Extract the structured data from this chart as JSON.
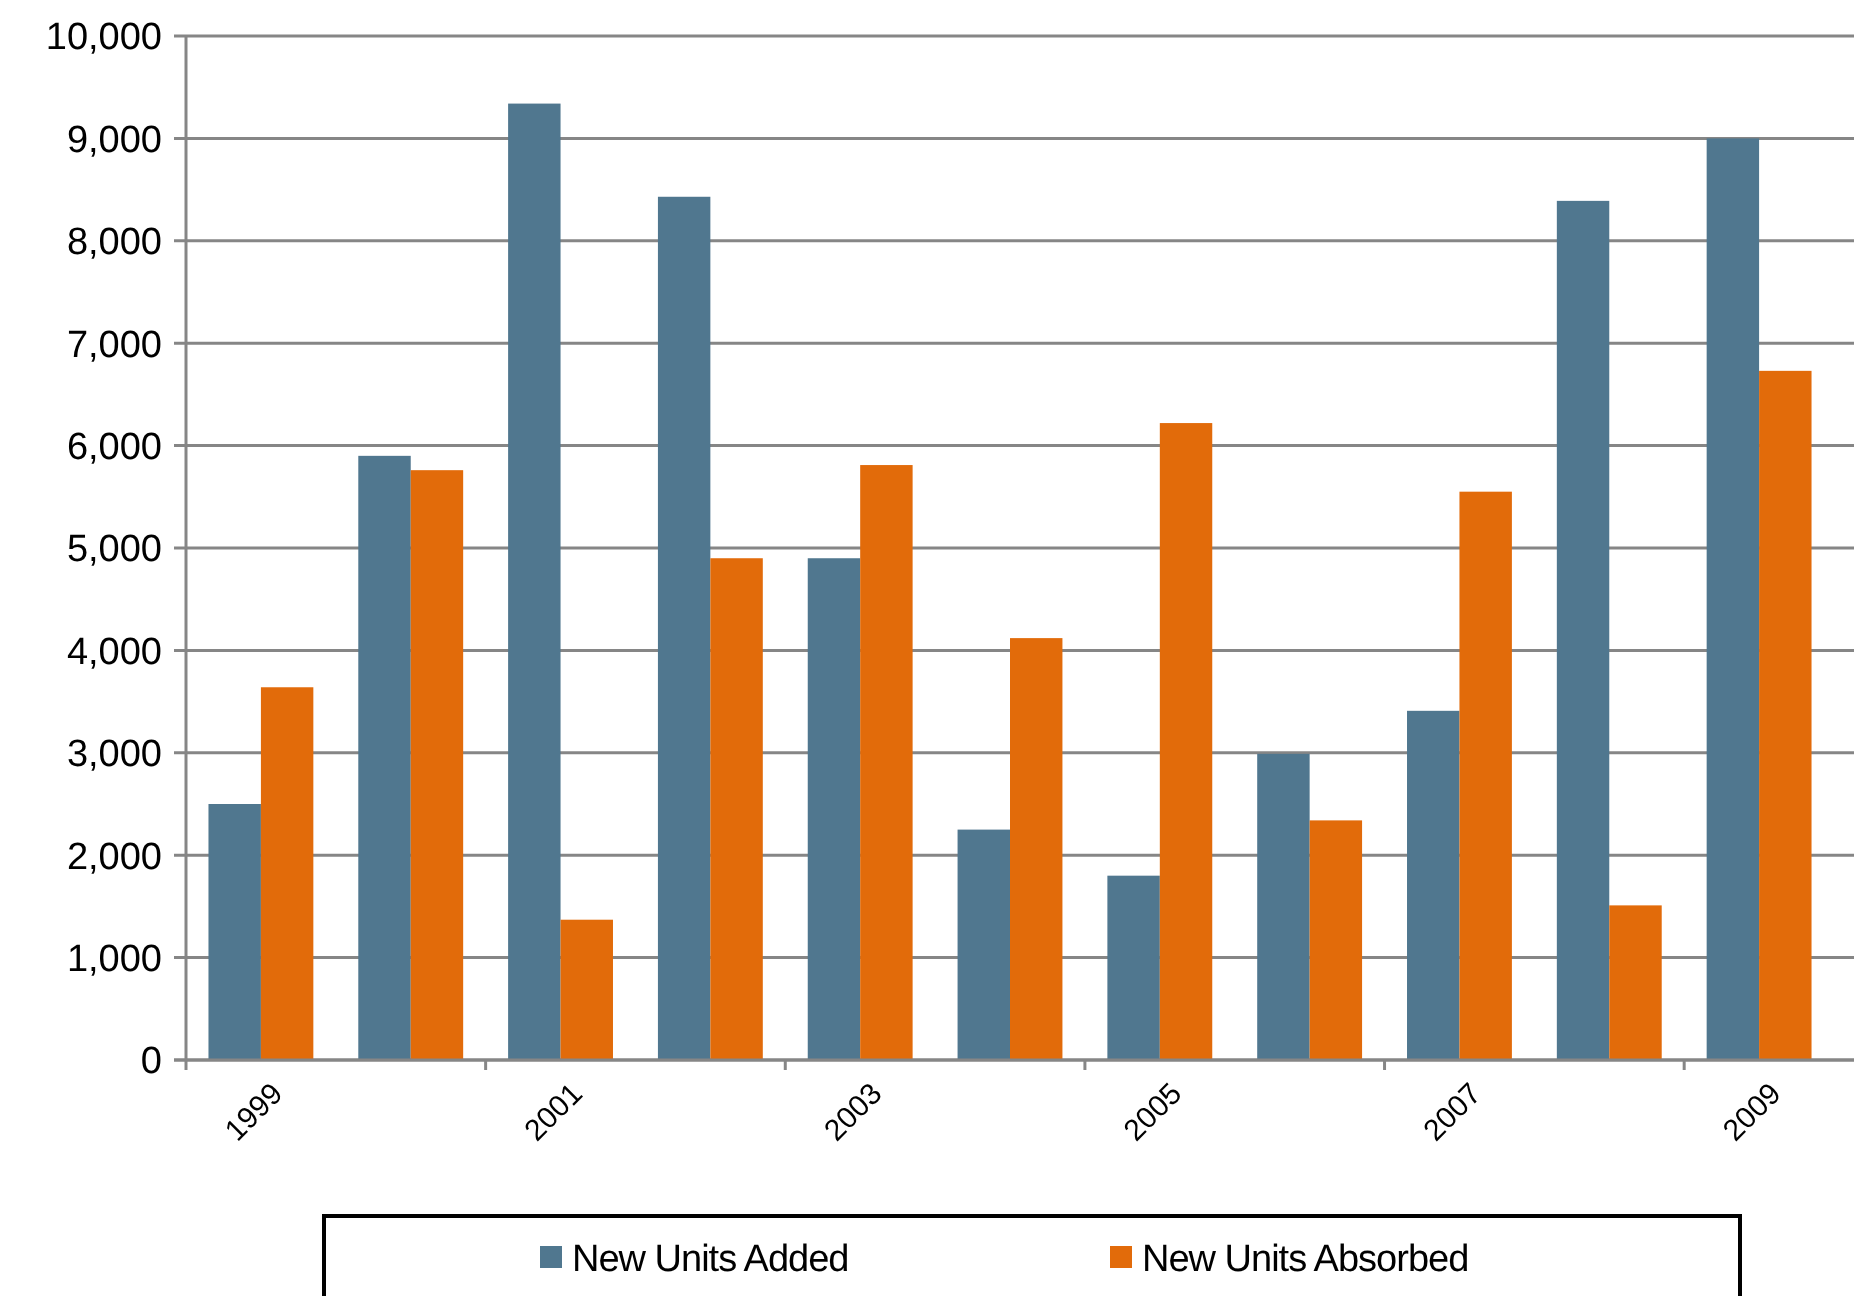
{
  "chart_data": {
    "type": "bar",
    "categories": [
      "1999",
      null,
      "2001",
      null,
      "2003",
      null,
      "2005",
      null,
      "2007",
      null,
      "2009"
    ],
    "series": [
      {
        "name": "New Units Added",
        "color": "#50778f",
        "values": [
          2500,
          5900,
          9340,
          8430,
          4900,
          2250,
          1800,
          2990,
          3410,
          8390,
          9000
        ]
      },
      {
        "name": "New Units Absorbed",
        "color": "#e26b0a",
        "values": [
          3640,
          5760,
          1370,
          4900,
          5810,
          4120,
          6220,
          2340,
          5550,
          1510,
          6730
        ]
      }
    ],
    "ylim": [
      0,
      10000
    ],
    "yticks": [
      {
        "value": 0,
        "label": "0"
      },
      {
        "value": 1000,
        "label": "1,000"
      },
      {
        "value": 2000,
        "label": "2,000"
      },
      {
        "value": 3000,
        "label": "3,000"
      },
      {
        "value": 4000,
        "label": "4,000"
      },
      {
        "value": 5000,
        "label": "5,000"
      },
      {
        "value": 6000,
        "label": "6,000"
      },
      {
        "value": 7000,
        "label": "7,000"
      },
      {
        "value": 8000,
        "label": "8,000"
      },
      {
        "value": 9000,
        "label": "9,000"
      },
      {
        "value": 10000,
        "label": "10,000"
      }
    ],
    "grid": "y",
    "legend": "bottom"
  }
}
